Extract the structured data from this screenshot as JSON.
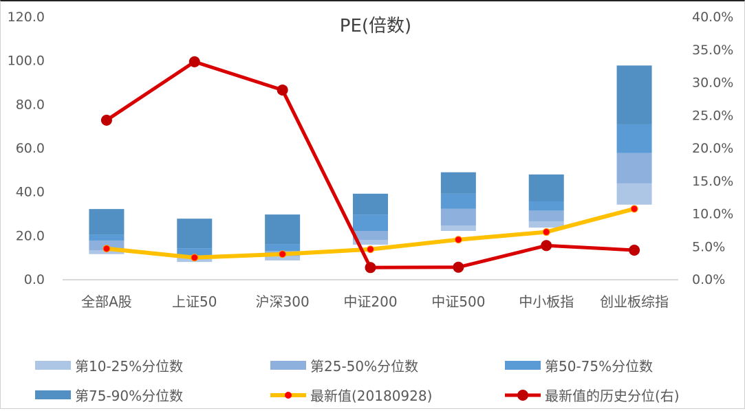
{
  "chart_data": {
    "type": "bar",
    "title": "PE(倍数)",
    "categories": [
      "全部A股",
      "上证50",
      "沪深300",
      "中证200",
      "中证500",
      "中小板指",
      "创业板综指"
    ],
    "y_left": {
      "range": [
        0,
        120
      ],
      "ticks": [
        "0.0",
        "20.0",
        "40.0",
        "60.0",
        "80.0",
        "100.0",
        "120.0"
      ]
    },
    "y_right": {
      "range": [
        0,
        40
      ],
      "ticks": [
        "0.0%",
        "5.0%",
        "10.0%",
        "15.0%",
        "20.0%",
        "25.0%",
        "30.0%",
        "35.0%",
        "40.0%"
      ]
    },
    "percentiles": {
      "p10": [
        11.4,
        7.8,
        8.5,
        15.7,
        22.0,
        23.5,
        34.0
      ],
      "p25": [
        13.2,
        9.5,
        10.5,
        17.9,
        24.5,
        26.4,
        43.7
      ],
      "p50": [
        17.6,
        10.5,
        12.8,
        21.9,
        32.1,
        31.3,
        57.6
      ],
      "p75": [
        20.4,
        14.1,
        16.0,
        29.5,
        39.0,
        35.5,
        70.7
      ],
      "p90": [
        32.0,
        27.6,
        29.5,
        39.0,
        48.8,
        47.8,
        97.6
      ]
    },
    "bands": [
      {
        "name": "第10-25%分位数",
        "from": "p10",
        "to": "p25",
        "color": "#aec6e5"
      },
      {
        "name": "第25-50%分位数",
        "from": "p25",
        "to": "p50",
        "color": "#8db1dc"
      },
      {
        "name": "第50-75%分位数",
        "from": "p50",
        "to": "p75",
        "color": "#5b9bd5"
      },
      {
        "name": "第75-90%分位数",
        "from": "p75",
        "to": "p90",
        "color": "#5290c3"
      }
    ],
    "lines": [
      {
        "name": "最新值(20180928)",
        "axis": "left",
        "color": "#ffc000",
        "marker_color": "#ff0000",
        "values": [
          13.9,
          9.8,
          11.4,
          13.6,
          18.0,
          21.5,
          32.1
        ]
      },
      {
        "name": "最新值的历史分位(右)",
        "axis": "right",
        "color": "#d90000",
        "marker_color": "#c00000",
        "values": [
          24.2,
          33.1,
          28.8,
          1.75,
          1.8,
          5.1,
          4.4
        ]
      }
    ],
    "legend_position": "bottom",
    "grid": false
  }
}
